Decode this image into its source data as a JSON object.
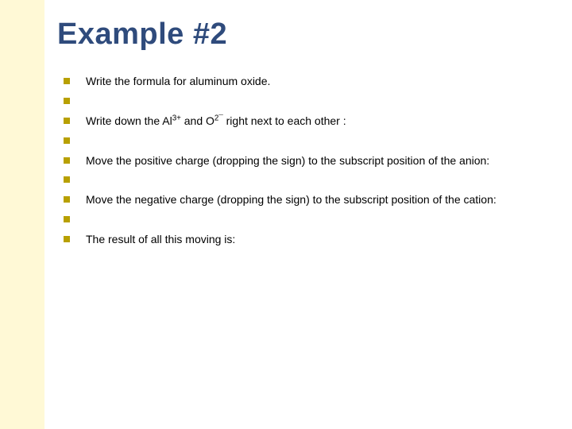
{
  "slide": {
    "title": "Example #2",
    "title_color": "#2f4b7c",
    "title_fontsize": 38,
    "body_fontsize": 14,
    "body_color": "#000000",
    "bullet_color": "#b8a000",
    "left_bar_color": "#fff9d6",
    "background_color": "#ffffff",
    "items": [
      {
        "type": "text",
        "text": "Write the formula for aluminum oxide."
      },
      {
        "type": "empty"
      },
      {
        "type": "rich",
        "segments": [
          {
            "t": "Write down the Al"
          },
          {
            "t": "3+",
            "sup": true
          },
          {
            "t": " and O"
          },
          {
            "t": "2¯",
            "sup": true
          },
          {
            "t": " right next to each other :"
          }
        ]
      },
      {
        "type": "empty"
      },
      {
        "type": "text",
        "text": "Move the positive charge (dropping the sign) to the subscript position of the anion:"
      },
      {
        "type": "empty"
      },
      {
        "type": "text",
        "text": "Move the negative charge (dropping the sign) to the subscript position of the cation:"
      },
      {
        "type": "empty"
      },
      {
        "type": "text",
        "text": "The result of all this moving is:"
      }
    ]
  }
}
